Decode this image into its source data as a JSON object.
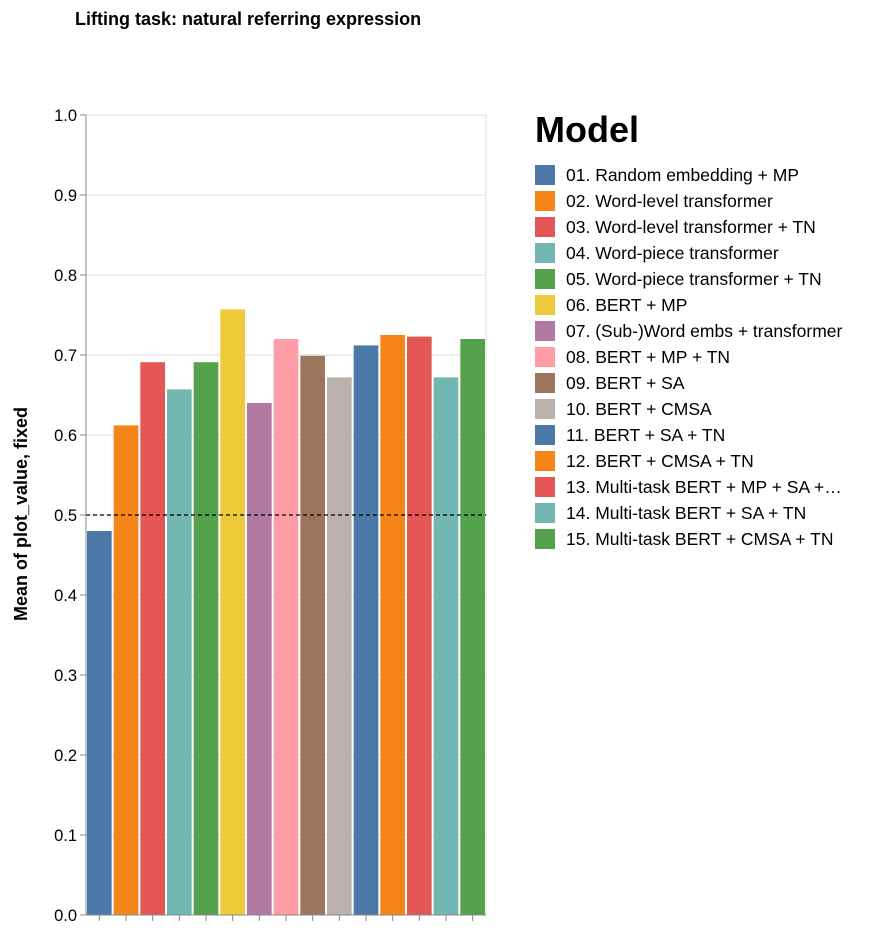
{
  "chart_data": {
    "type": "bar",
    "title": "Lifting task: natural referring expression",
    "ylabel": "Mean of plot_value, fixed",
    "xlabel": "",
    "ylim": [
      0,
      1
    ],
    "yticks": [
      "0.0",
      "0.1",
      "0.2",
      "0.3",
      "0.4",
      "0.5",
      "0.6",
      "0.7",
      "0.8",
      "0.9",
      "1.0"
    ],
    "reference_line": 0.5,
    "grid": true,
    "legend_title": "Model",
    "legend_position": "right",
    "categories": [
      "01. Random embedding + MP",
      "02. Word-level transformer",
      "03. Word-level transformer + TN",
      "04. Word-piece transformer",
      "05. Word-piece transformer + TN",
      "06. BERT + MP",
      "07. (Sub-)Word embs + transformer",
      "08. BERT + MP + TN",
      "09. BERT + SA",
      "10. BERT + CMSA",
      "11. BERT + SA + TN",
      "12. BERT + CMSA + TN",
      "13. Multi-task BERT + MP + SA +…",
      "14. Multi-task BERT + SA + TN",
      "15. Multi-task BERT + CMSA + TN"
    ],
    "values": [
      0.48,
      0.612,
      0.691,
      0.657,
      0.691,
      0.757,
      0.64,
      0.72,
      0.699,
      0.672,
      0.712,
      0.725,
      0.723,
      0.672,
      0.72
    ],
    "colors": [
      "#4c78a8",
      "#f58518",
      "#e45756",
      "#72b7b2",
      "#54a24b",
      "#eeca3b",
      "#b279a2",
      "#ff9da6",
      "#9d755d",
      "#bab0ac",
      "#4c78a8",
      "#f58518",
      "#e45756",
      "#72b7b2",
      "#54a24b"
    ]
  }
}
